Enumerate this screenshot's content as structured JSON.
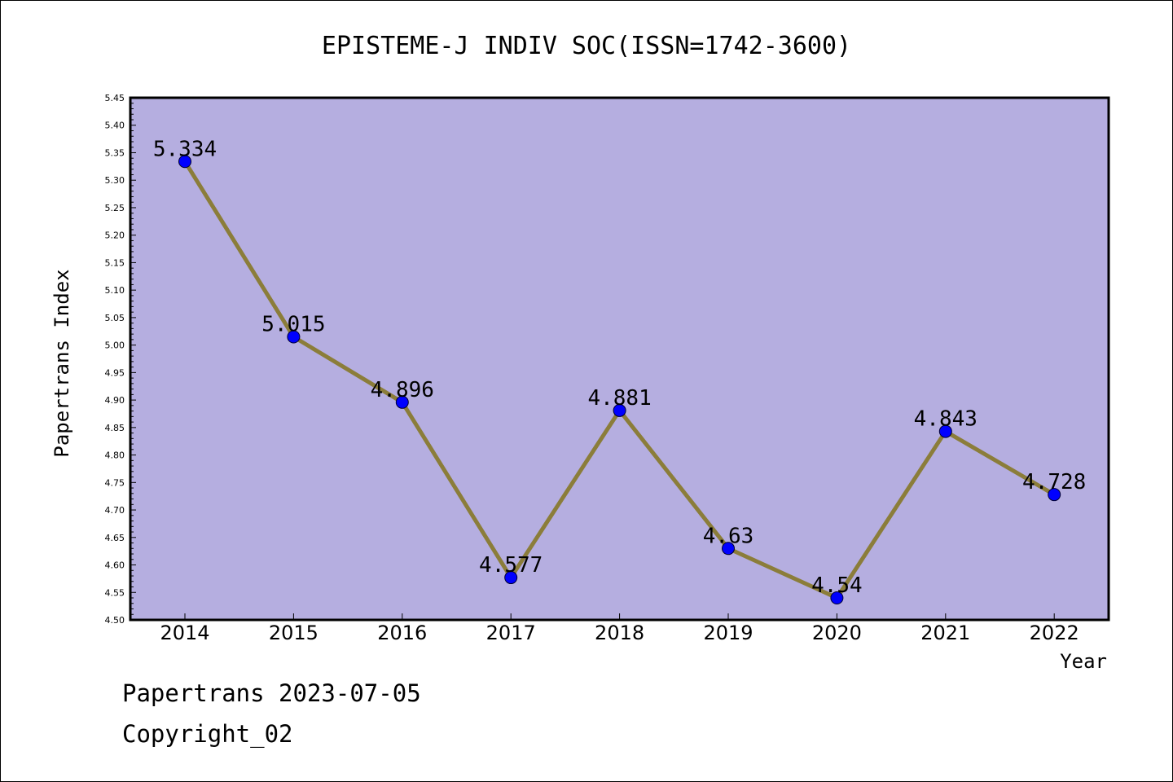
{
  "chart_data": {
    "type": "line",
    "title": "EPISTEME-J INDIV SOC(ISSN=1742-3600)",
    "xlabel": "Year",
    "ylabel": "Papertrans Index",
    "categories": [
      "2014",
      "2015",
      "2016",
      "2017",
      "2018",
      "2019",
      "2020",
      "2021",
      "2022"
    ],
    "series": [
      {
        "values": [
          5.334,
          5.015,
          4.896,
          4.577,
          4.881,
          4.63,
          4.54,
          4.843,
          4.728
        ],
        "labels": [
          "5.334",
          "5.015",
          "4.896",
          "4.577",
          "4.881",
          "4.63",
          "4.54",
          "4.843",
          "4.728"
        ]
      }
    ],
    "ylim": [
      4.5,
      5.45
    ],
    "yticks": [
      "4.50",
      "4.55",
      "4.60",
      "4.65",
      "4.70",
      "4.75",
      "4.80",
      "4.85",
      "4.90",
      "4.95",
      "5.00",
      "5.05",
      "5.10",
      "5.15",
      "5.20",
      "5.25",
      "5.30",
      "5.35",
      "5.40",
      "5.45"
    ],
    "grid": false,
    "colors": {
      "plot_background": "#b5aee0",
      "line": "#8b7d3a",
      "marker": "#0000ff"
    }
  },
  "footer": {
    "line1": "Papertrans 2023-07-05",
    "line2": "Copyright_02"
  }
}
